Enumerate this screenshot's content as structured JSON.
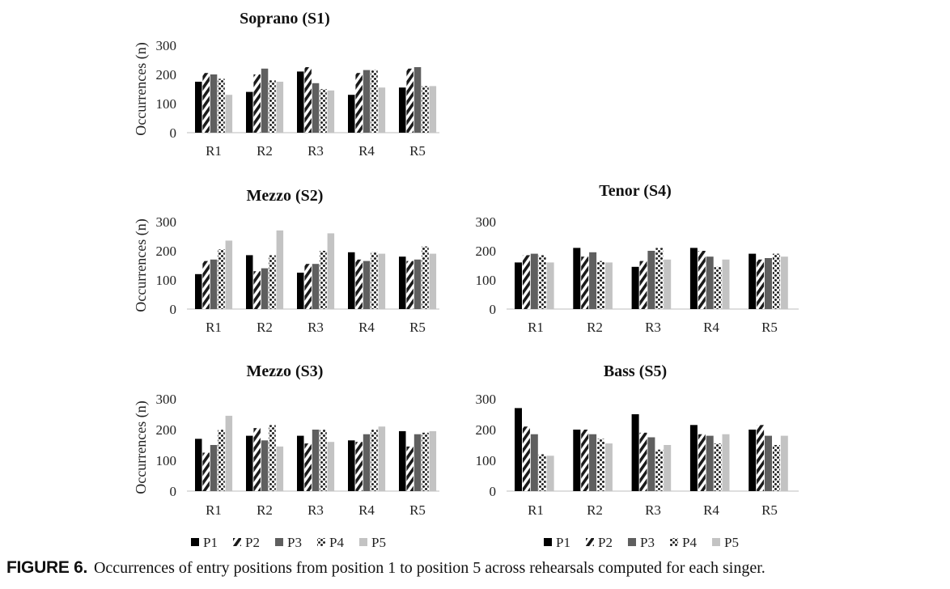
{
  "caption": {
    "label": "FIGURE 6.",
    "text": "Occurrences of entry positions from position 1 to position 5 across rehearsals computed for each singer."
  },
  "colors": {
    "P1": "#000000",
    "P2": "#1a1a1a",
    "P3": "#5f5f5f",
    "P4": "#2a2a2a",
    "P5": "#c3c3c3"
  },
  "chart_data": [
    {
      "type": "bar",
      "title": "Soprano (S1)",
      "ylabel": "Occurrences (n)",
      "xlabel": "",
      "ylim": [
        0,
        300
      ],
      "yticks": [
        "0",
        "100",
        "200",
        "300"
      ],
      "categories": [
        "R1",
        "R2",
        "R3",
        "R4",
        "R5"
      ],
      "series": [
        {
          "name": "P1",
          "values": [
            175,
            140,
            210,
            130,
            155
          ]
        },
        {
          "name": "P2",
          "values": [
            205,
            200,
            225,
            205,
            220
          ]
        },
        {
          "name": "P3",
          "values": [
            200,
            220,
            170,
            215,
            225
          ]
        },
        {
          "name": "P4",
          "values": [
            185,
            180,
            150,
            215,
            160
          ]
        },
        {
          "name": "P5",
          "values": [
            130,
            175,
            145,
            155,
            160
          ]
        }
      ]
    },
    {
      "type": "bar",
      "title": "Mezzo (S2)",
      "ylabel": "Occurrences (n)",
      "xlabel": "",
      "ylim": [
        0,
        300
      ],
      "yticks": [
        "0",
        "100",
        "200",
        "300"
      ],
      "categories": [
        "R1",
        "R2",
        "R3",
        "R4",
        "R5"
      ],
      "series": [
        {
          "name": "P1",
          "values": [
            120,
            185,
            125,
            195,
            180
          ]
        },
        {
          "name": "P2",
          "values": [
            165,
            130,
            155,
            170,
            165
          ]
        },
        {
          "name": "P3",
          "values": [
            170,
            140,
            155,
            165,
            170
          ]
        },
        {
          "name": "P4",
          "values": [
            205,
            185,
            200,
            195,
            215
          ]
        },
        {
          "name": "P5",
          "values": [
            235,
            270,
            260,
            190,
            190
          ]
        }
      ]
    },
    {
      "type": "bar",
      "title": "Tenor (S4)",
      "ylabel": "",
      "xlabel": "",
      "ylim": [
        0,
        300
      ],
      "yticks": [
        "0",
        "100",
        "200",
        "300"
      ],
      "categories": [
        "R1",
        "R2",
        "R3",
        "R4",
        "R5"
      ],
      "series": [
        {
          "name": "P1",
          "values": [
            160,
            210,
            145,
            210,
            190
          ]
        },
        {
          "name": "P2",
          "values": [
            185,
            180,
            165,
            200,
            170
          ]
        },
        {
          "name": "P3",
          "values": [
            190,
            195,
            200,
            180,
            175
          ]
        },
        {
          "name": "P4",
          "values": [
            185,
            165,
            210,
            145,
            190
          ]
        },
        {
          "name": "P5",
          "values": [
            160,
            160,
            170,
            170,
            180
          ]
        }
      ]
    },
    {
      "type": "bar",
      "title": "Mezzo (S3)",
      "ylabel": "Occurrences (n)",
      "xlabel": "",
      "ylim": [
        0,
        300
      ],
      "yticks": [
        "0",
        "100",
        "200",
        "300"
      ],
      "categories": [
        "R1",
        "R2",
        "R3",
        "R4",
        "R5"
      ],
      "series": [
        {
          "name": "P1",
          "values": [
            170,
            180,
            180,
            165,
            195
          ]
        },
        {
          "name": "P2",
          "values": [
            125,
            205,
            155,
            160,
            145
          ]
        },
        {
          "name": "P3",
          "values": [
            150,
            165,
            200,
            185,
            185
          ]
        },
        {
          "name": "P4",
          "values": [
            200,
            215,
            200,
            200,
            190
          ]
        },
        {
          "name": "P5",
          "values": [
            245,
            145,
            160,
            210,
            195
          ]
        }
      ]
    },
    {
      "type": "bar",
      "title": "Bass (S5)",
      "ylabel": "",
      "xlabel": "",
      "ylim": [
        0,
        300
      ],
      "yticks": [
        "0",
        "100",
        "200",
        "300"
      ],
      "categories": [
        "R1",
        "R2",
        "R3",
        "R4",
        "R5"
      ],
      "series": [
        {
          "name": "P1",
          "values": [
            270,
            200,
            250,
            215,
            200
          ]
        },
        {
          "name": "P2",
          "values": [
            210,
            200,
            190,
            185,
            215
          ]
        },
        {
          "name": "P3",
          "values": [
            185,
            185,
            175,
            180,
            180
          ]
        },
        {
          "name": "P4",
          "values": [
            120,
            170,
            135,
            155,
            150
          ]
        },
        {
          "name": "P5",
          "values": [
            115,
            155,
            150,
            185,
            180
          ]
        }
      ]
    }
  ],
  "legends": [
    {
      "items": [
        "P1",
        "P2",
        "P3",
        "P4",
        "P5"
      ]
    },
    {
      "items": [
        "P1",
        "P2",
        "P3",
        "P4",
        "P5"
      ]
    }
  ]
}
